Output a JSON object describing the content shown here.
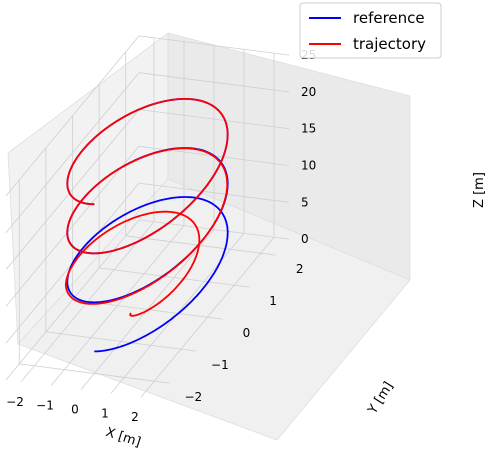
{
  "chart_data": {
    "type": "line",
    "projection": "3d",
    "xlabel": "X [m]",
    "ylabel": "Y [m]",
    "zlabel": "Z [m]",
    "xticks": [
      "−2",
      "−1",
      "0",
      "1",
      "2"
    ],
    "yticks": [
      "−2",
      "−1",
      "0",
      "1",
      "2"
    ],
    "zticks": [
      "0",
      "5",
      "10",
      "15",
      "20",
      "25"
    ],
    "xlim": [
      -2.5,
      2.5
    ],
    "ylim": [
      -2.5,
      2.5
    ],
    "zlim": [
      0,
      25
    ],
    "grid": true,
    "legend_position": "top-right",
    "series": [
      {
        "name": "reference",
        "color": "#0000ff",
        "description_values": {
          "shape": "helix",
          "radius": 2.0,
          "z_start": 3.0,
          "z_end": 23.0,
          "turns": 3
        }
      },
      {
        "name": "trajectory",
        "color": "#ff0000",
        "description_values": {
          "shape": "converging helix",
          "start": [
            0,
            -2,
            0
          ],
          "radius": 2.0,
          "z_end": 23.0
        }
      }
    ]
  }
}
